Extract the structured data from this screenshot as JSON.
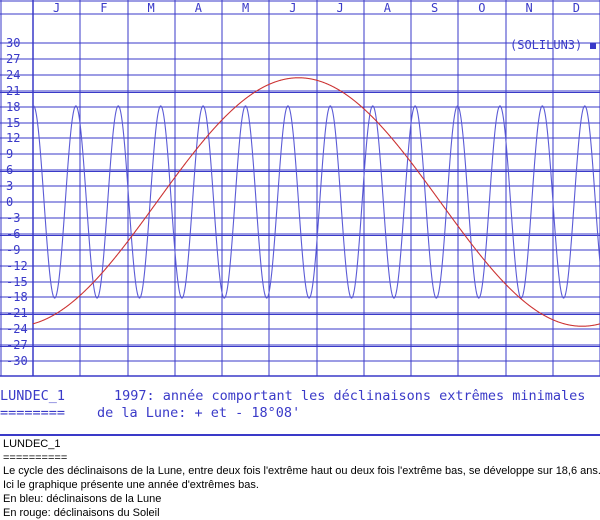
{
  "chart_data": {
    "type": "line",
    "months": [
      "J",
      "F",
      "M",
      "A",
      "M",
      "J",
      "J",
      "A",
      "S",
      "O",
      "N",
      "D"
    ],
    "y_ticks": [
      30,
      27,
      24,
      21,
      18,
      15,
      12,
      9,
      6,
      3,
      0,
      -3,
      -6,
      -9,
      -12,
      -15,
      -18,
      -21,
      -24,
      -27,
      -30
    ],
    "ylim": [
      -30,
      30
    ],
    "tag": "(SOLILUN3)",
    "series": [
      {
        "color": "#5b5bd6",
        "shape": "sine",
        "period_days": 27.3,
        "amplitude": 18.13,
        "peak_day": 0.3
      },
      {
        "color": "#cc3333",
        "shape": "sine",
        "amplitude": 23.44,
        "peak_day": 171
      }
    ],
    "grid": true
  },
  "info": {
    "code": "LUNDEC_1",
    "underline": "========",
    "line1": "1997: année comportant les déclinaisons extrêmes minimales",
    "line2": "de la Lune: + et - 18°08'"
  },
  "description": {
    "title": "LUNDEC_1",
    "underline": "==========",
    "line1": "Le cycle des déclinaisons de la Lune, entre deux fois l'extrême haut ou deux fois l'extrême bas, se développe sur 18,6 ans.",
    "line2": "Ici le graphique présente une année d'extrêmes bas.",
    "line3": "En bleu: déclinaisons de la Lune",
    "line4": "En rouge: déclinaisons du Soleil"
  }
}
